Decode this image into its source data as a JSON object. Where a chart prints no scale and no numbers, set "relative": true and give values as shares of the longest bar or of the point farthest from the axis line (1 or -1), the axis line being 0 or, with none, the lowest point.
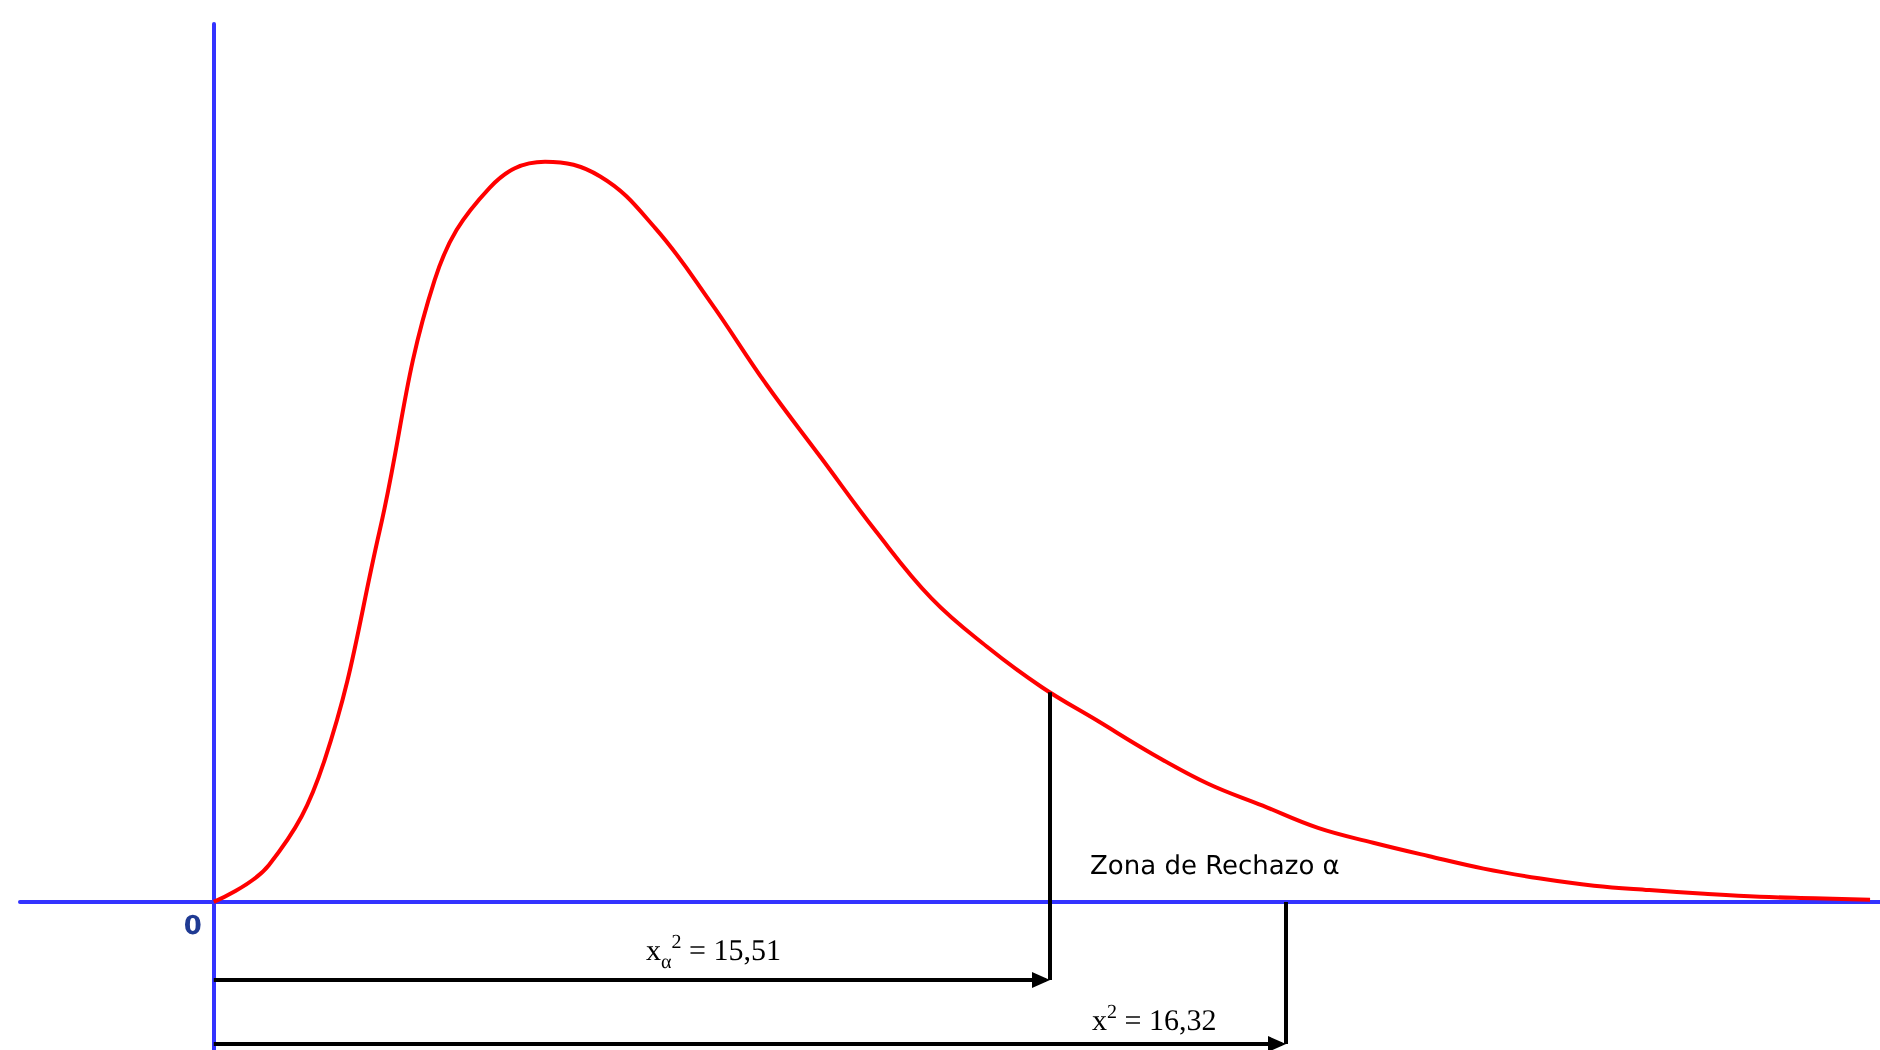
{
  "chart_data": {
    "type": "line",
    "relative": true,
    "color": "#ff0000",
    "marker": "none",
    "categories": [
      null,
      null,
      null,
      null,
      null,
      null,
      null,
      null,
      null,
      null,
      null,
      null,
      null,
      null,
      null,
      null,
      null,
      null,
      null,
      null,
      null,
      null,
      null,
      null,
      null,
      null,
      null,
      null,
      null,
      null,
      null
    ],
    "values": [
      0,
      0.05,
      0.19,
      0.5,
      0.84,
      0.965,
      1,
      0.98,
      0.91,
      0.81,
      0.7,
      0.6,
      0.5,
      0.41,
      0.345,
      0.29,
      0.245,
      0.2,
      0.16,
      0.13,
      0.1,
      0.08,
      0.062,
      0.045,
      0.032,
      0.022,
      0.016,
      0.011,
      0.007,
      0.005,
      0.003
    ],
    "annotations": [
      "0",
      "x$_{α}$$^{2}$ = 15,51",
      "x$^{2}$ = 16,32",
      "Zona de Rechazo α"
    ]
  }
}
